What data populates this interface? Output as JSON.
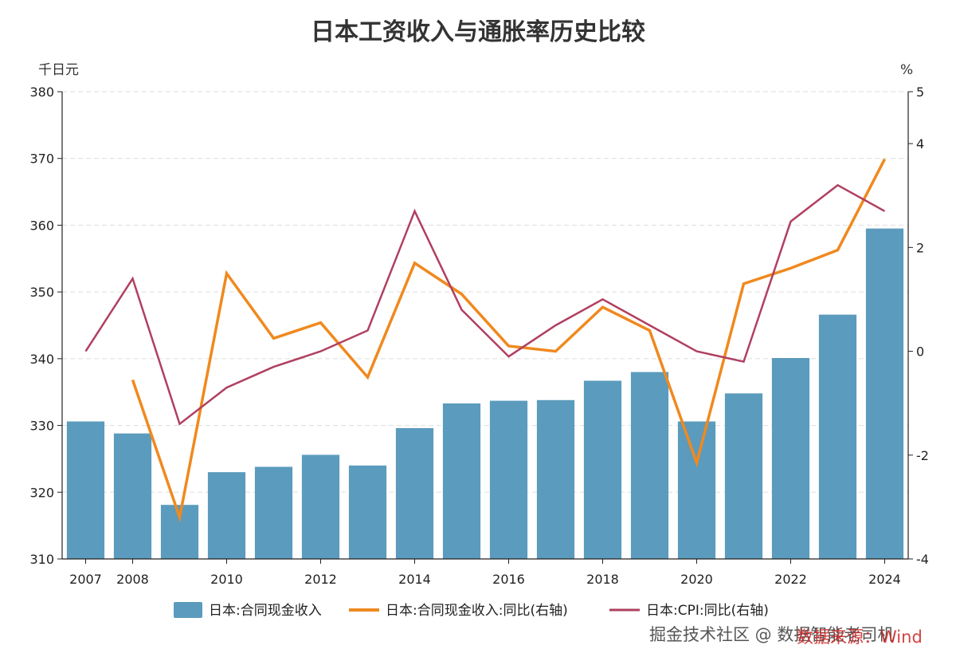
{
  "chart_data": {
    "type": "bar+line",
    "title": "日本工资收入与通胀率历史比较",
    "left_unit": "千日元",
    "right_unit": "%",
    "ylim_left": [
      310,
      380
    ],
    "ylim_right": [
      -4,
      5
    ],
    "left_ticks": [
      310,
      320,
      330,
      340,
      350,
      360,
      370,
      380
    ],
    "right_ticks": [
      -4,
      -2,
      0,
      2,
      4,
      5
    ],
    "grid": "horizontal dashed",
    "years": [
      2007,
      2008,
      2009,
      2010,
      2011,
      2012,
      2013,
      2014,
      2015,
      2016,
      2017,
      2018,
      2019,
      2020,
      2021,
      2022,
      2023,
      2024
    ],
    "x_tick_labels": [
      "2007",
      "2008",
      "2010",
      "2012",
      "2014",
      "2016",
      "2018",
      "2020",
      "2022",
      "2024"
    ],
    "series": [
      {
        "name": "日本:合同现金收入",
        "kind": "bar",
        "axis": "left",
        "color": "#5b9bbd",
        "values": [
          330.6,
          328.8,
          318.1,
          323.0,
          323.8,
          325.6,
          324.0,
          329.6,
          333.3,
          333.7,
          333.8,
          336.7,
          338.0,
          330.6,
          334.8,
          340.1,
          346.6,
          359.5
        ]
      },
      {
        "name": "日本:合同现金收入:同比(右轴)",
        "kind": "line",
        "axis": "right",
        "color": "#f0891e",
        "values": [
          null,
          -0.55,
          -3.2,
          1.5,
          0.25,
          0.55,
          -0.5,
          1.7,
          1.1,
          0.1,
          0.0,
          0.85,
          0.4,
          -2.15,
          1.3,
          1.6,
          1.95,
          3.7
        ]
      },
      {
        "name": "日本:CPI:同比(右轴)",
        "kind": "line",
        "axis": "right",
        "color": "#b04060",
        "values": [
          0.0,
          1.4,
          -1.4,
          -0.7,
          -0.3,
          0.0,
          0.4,
          2.7,
          0.8,
          -0.1,
          0.5,
          1.0,
          0.5,
          0.0,
          -0.2,
          2.5,
          3.2,
          2.7
        ]
      }
    ],
    "legend_position": "bottom"
  },
  "watermark": {
    "text": "掘金技术社区 @ 数据智能老司机",
    "source": "数据来源：Wind"
  }
}
